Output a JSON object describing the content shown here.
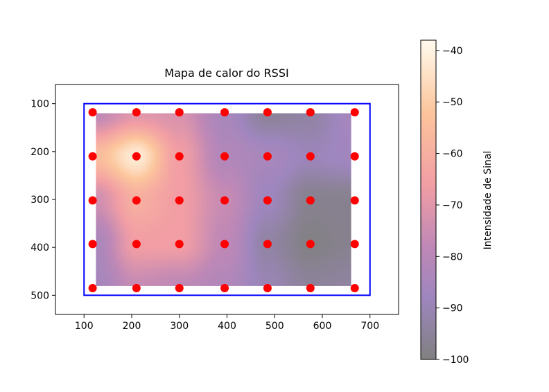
{
  "chart_data": {
    "type": "heatmap",
    "title": "Mapa de calor do RSSI",
    "xlabel": "",
    "ylabel": "",
    "xlim": [
      40,
      760
    ],
    "ylim": [
      540,
      60
    ],
    "y_inverted": true,
    "x_ticks": [
      "100",
      "200",
      "300",
      "400",
      "500",
      "600",
      "700"
    ],
    "x_tick_values": [
      100,
      200,
      300,
      400,
      500,
      600,
      700
    ],
    "y_ticks": [
      "100",
      "200",
      "300",
      "400",
      "500"
    ],
    "y_tick_values": [
      100,
      200,
      300,
      400,
      500
    ],
    "heatmap_extent": {
      "x": [
        125,
        660
      ],
      "y": [
        120,
        480
      ]
    },
    "rssi_grid": {
      "x": [
        125,
        210,
        300,
        395,
        485,
        575,
        660
      ],
      "y": [
        120,
        210,
        300,
        390,
        480
      ],
      "values": [
        [
          -78,
          -70,
          -72,
          -85,
          -95,
          -93,
          -86
        ],
        [
          -55,
          -42,
          -66,
          -82,
          -85,
          -89,
          -87
        ],
        [
          -74,
          -60,
          -66,
          -76,
          -88,
          -97,
          -97
        ],
        [
          -84,
          -66,
          -66,
          -78,
          -93,
          -99,
          -97
        ],
        [
          -86,
          -76,
          -78,
          -82,
          -90,
          -95,
          -94
        ]
      ]
    },
    "boundary_rect": {
      "x": [
        100,
        700
      ],
      "y": [
        100,
        500
      ],
      "color": "#0000ff"
    },
    "measurement_points": {
      "color": "#ff0000",
      "x": [
        118,
        210,
        300,
        395,
        485,
        575,
        668
      ],
      "y": [
        118,
        210,
        302,
        393,
        485
      ]
    },
    "colorbar": {
      "label": "Intensidade de Sinal",
      "range": [
        -100,
        -38
      ],
      "ticks": [
        "−40",
        "−50",
        "−60",
        "−70",
        "−80",
        "−90",
        "−100"
      ],
      "tick_values": [
        -40,
        -50,
        -60,
        -70,
        -80,
        -90,
        -100
      ],
      "colormap": "magma-like, alpha 0.5",
      "color_stops": [
        {
          "v": -100,
          "c": "#808080"
        },
        {
          "v": -88,
          "c": "#9e86be"
        },
        {
          "v": -78,
          "c": "#bf88b6"
        },
        {
          "v": -66,
          "c": "#f29ea4"
        },
        {
          "v": -52,
          "c": "#fcc59c"
        },
        {
          "v": -38,
          "c": "#fffbee"
        }
      ]
    }
  }
}
